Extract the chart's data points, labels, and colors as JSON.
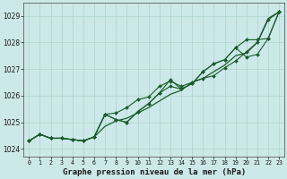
{
  "xlabel": "Graphe pression niveau de la mer (hPa)",
  "bg_color": "#cde8e8",
  "grid_color": "#b0d4cc",
  "line_color": "#1a5c2a",
  "ylim": [
    1023.7,
    1029.5
  ],
  "xlim": [
    -0.5,
    23.5
  ],
  "yticks": [
    1024,
    1025,
    1026,
    1027,
    1028,
    1029
  ],
  "xticks": [
    0,
    1,
    2,
    3,
    4,
    5,
    6,
    7,
    8,
    9,
    10,
    11,
    12,
    13,
    14,
    15,
    16,
    17,
    18,
    19,
    20,
    21,
    22,
    23
  ],
  "series": [
    {
      "x": [
        0,
        1,
        2,
        3,
        4,
        5,
        6,
        7,
        8,
        9,
        10,
        11,
        12,
        13,
        14,
        15,
        16,
        17,
        18,
        19,
        20,
        21,
        22,
        23
      ],
      "y": [
        1024.3,
        1024.55,
        1024.4,
        1024.4,
        1024.35,
        1024.3,
        1024.45,
        1024.85,
        1025.05,
        1025.15,
        1025.35,
        1025.55,
        1025.8,
        1026.05,
        1026.2,
        1026.5,
        1026.65,
        1026.9,
        1027.15,
        1027.5,
        1027.6,
        1028.0,
        1028.9,
        1029.15
      ],
      "markers": false,
      "linewidth": 0.9
    },
    {
      "x": [
        0,
        1,
        2,
        3,
        4,
        5,
        6,
        7,
        8,
        9,
        10,
        11,
        12,
        13,
        14,
        15,
        16,
        17,
        18,
        19,
        20,
        21,
        22,
        23
      ],
      "y": [
        1024.3,
        1024.55,
        1024.4,
        1024.4,
        1024.35,
        1024.3,
        1024.45,
        1025.3,
        1025.35,
        1025.55,
        1025.85,
        1025.95,
        1026.35,
        1026.55,
        1026.35,
        1026.5,
        1026.65,
        1026.75,
        1027.05,
        1027.3,
        1027.65,
        1028.0,
        1028.85,
        1029.15
      ],
      "markers": true,
      "linewidth": 0.8
    },
    {
      "x": [
        0,
        1,
        2,
        3,
        4,
        5,
        6,
        7,
        8,
        9,
        10,
        11,
        12,
        13,
        14,
        15,
        16,
        17,
        18,
        19,
        20,
        21,
        22,
        23
      ],
      "y": [
        1024.3,
        1024.55,
        1024.4,
        1024.4,
        1024.35,
        1024.3,
        1024.45,
        1025.3,
        1025.1,
        1025.0,
        1025.4,
        1025.7,
        1026.1,
        1026.6,
        1026.25,
        1026.45,
        1026.9,
        1027.2,
        1027.35,
        1027.8,
        1028.1,
        1028.1,
        1028.15,
        1029.15
      ],
      "markers": true,
      "linewidth": 0.8
    },
    {
      "x": [
        0,
        1,
        2,
        3,
        4,
        5,
        6,
        7,
        8,
        9,
        10,
        11,
        12,
        13,
        14,
        15,
        16,
        17,
        18,
        19,
        20,
        21,
        22,
        23
      ],
      "y": [
        1024.3,
        1024.55,
        1024.4,
        1024.4,
        1024.35,
        1024.3,
        1024.45,
        1025.3,
        1025.1,
        1025.0,
        1025.4,
        1025.7,
        1026.1,
        1026.35,
        1026.25,
        1026.45,
        1026.9,
        1027.2,
        1027.35,
        1027.8,
        1027.45,
        1027.55,
        1028.15,
        1029.15
      ],
      "markers": true,
      "linewidth": 0.8
    }
  ]
}
